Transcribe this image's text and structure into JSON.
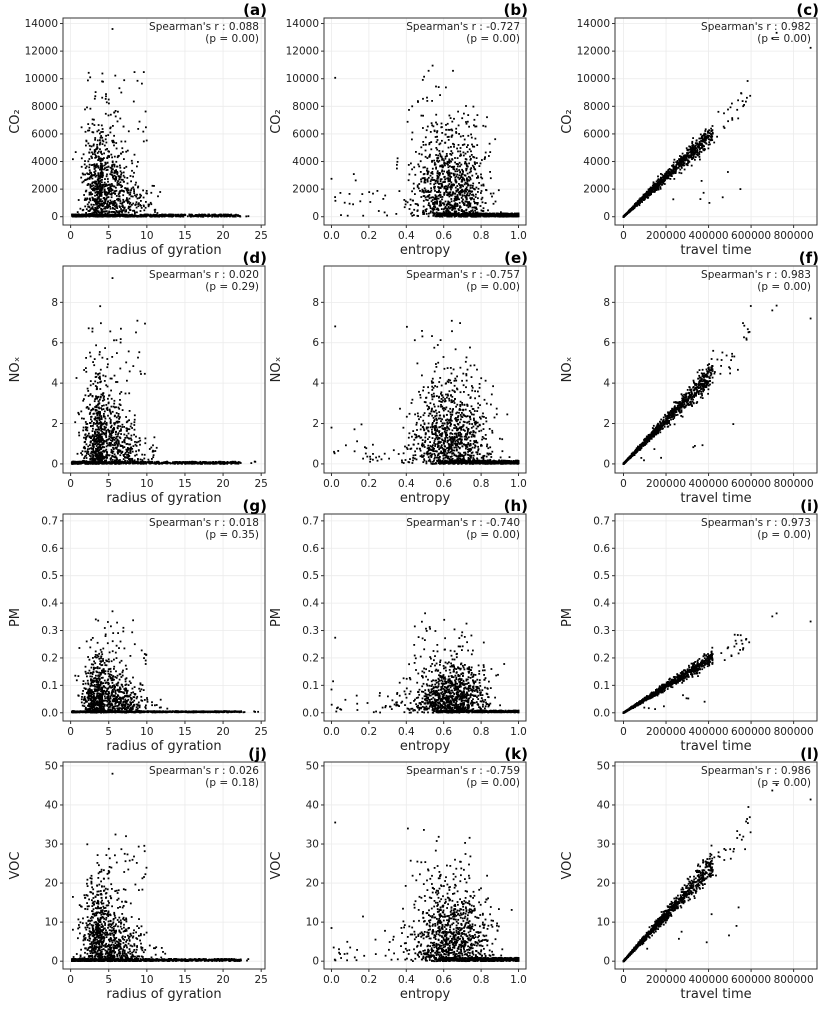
{
  "chart_data": [
    {
      "id": "a",
      "type": "scatter",
      "panel_label": "(a)",
      "xlabel": "radius of gyration",
      "ylabel": "CO₂",
      "xlim": [
        -1,
        25.5
      ],
      "ylim": [
        -600,
        14400
      ],
      "xticks": [
        0,
        5,
        10,
        15,
        20,
        25
      ],
      "yticks": [
        0,
        2000,
        4000,
        6000,
        8000,
        10000,
        12000,
        14000
      ],
      "yticklabels": [
        "0",
        "2000",
        "4000",
        "6000",
        "8000",
        "10000",
        "12000",
        "14000"
      ],
      "stat": "Spearman's r : 0.088",
      "pval": "(p = 0.00)",
      "pattern": "rog",
      "ymax": 13600,
      "base": 0.0028,
      "dense": 5500
    },
    {
      "id": "b",
      "type": "scatter",
      "panel_label": "(b)",
      "xlabel": "entropy",
      "ylabel": "CO₂",
      "xlim": [
        -0.04,
        1.04
      ],
      "ylim": [
        -600,
        14400
      ],
      "xticks": [
        0.0,
        0.2,
        0.4,
        0.6,
        0.8,
        1.0
      ],
      "yticks": [
        0,
        2000,
        4000,
        6000,
        8000,
        10000,
        12000,
        14000
      ],
      "yticklabels": [
        "0",
        "2000",
        "4000",
        "6000",
        "8000",
        "10000",
        "12000",
        "14000"
      ],
      "stat": "Spearman's r : -0.727",
      "pval": "(p = 0.00)",
      "pattern": "entropy",
      "ymax": 13600,
      "base": 0.0028,
      "dense": 5500
    },
    {
      "id": "c",
      "type": "scatter",
      "panel_label": "(c)",
      "xlabel": "travel time",
      "ylabel": "CO₂",
      "xlim": [
        -40000,
        910000
      ],
      "ylim": [
        -600,
        14400
      ],
      "xticks": [
        0,
        200000,
        400000,
        600000,
        800000
      ],
      "yticks": [
        0,
        2000,
        4000,
        6000,
        8000,
        10000,
        12000,
        14000
      ],
      "yticklabels": [
        "0",
        "2000",
        "4000",
        "6000",
        "8000",
        "10000",
        "12000",
        "14000"
      ],
      "stat": "Spearman's r : 0.982",
      "pval": "(p = 0.00)",
      "pattern": "travel",
      "ymax": 13600,
      "slope": 0.0145
    },
    {
      "id": "d",
      "type": "scatter",
      "panel_label": "(d)",
      "xlabel": "radius of gyration",
      "ylabel": "NOₓ",
      "xlim": [
        -1,
        25.5
      ],
      "ylim": [
        -0.45,
        9.8
      ],
      "xticks": [
        0,
        5,
        10,
        15,
        20,
        25
      ],
      "yticks": [
        0,
        2,
        4,
        6,
        8
      ],
      "yticklabels": [
        "0",
        "2",
        "4",
        "6",
        "8"
      ],
      "stat": "Spearman's r : 0.020",
      "pval": "(p = 0.29)",
      "pattern": "rog",
      "ymax": 9.2,
      "base": 0.002,
      "dense": 3.6
    },
    {
      "id": "e",
      "type": "scatter",
      "panel_label": "(e)",
      "xlabel": "entropy",
      "ylabel": "NOₓ",
      "xlim": [
        -0.04,
        1.04
      ],
      "ylim": [
        -0.45,
        9.8
      ],
      "xticks": [
        0.0,
        0.2,
        0.4,
        0.6,
        0.8,
        1.0
      ],
      "yticks": [
        0,
        2,
        4,
        6,
        8
      ],
      "yticklabels": [
        "0",
        "2",
        "4",
        "6",
        "8"
      ],
      "stat": "Spearman's r : -0.757",
      "pval": "(p = 0.00)",
      "pattern": "entropy",
      "ymax": 9.2,
      "base": 0.002,
      "dense": 3.6
    },
    {
      "id": "f",
      "type": "scatter",
      "panel_label": "(f)",
      "xlabel": "travel time",
      "ylabel": "NOₓ",
      "xlim": [
        -40000,
        910000
      ],
      "ylim": [
        -0.45,
        9.8
      ],
      "xticks": [
        0,
        200000,
        400000,
        600000,
        800000
      ],
      "yticks": [
        0,
        2,
        4,
        6,
        8
      ],
      "yticklabels": [
        "0",
        "2",
        "4",
        "6",
        "8"
      ],
      "stat": "Spearman's r : 0.983",
      "pval": "(p = 0.00)",
      "pattern": "travel",
      "ymax": 8.0,
      "slope": 1.08e-05
    },
    {
      "id": "g",
      "type": "scatter",
      "panel_label": "(g)",
      "xlabel": "radius of gyration",
      "ylabel": "PM",
      "xlim": [
        -1,
        25.5
      ],
      "ylim": [
        -0.03,
        0.725
      ],
      "xticks": [
        0,
        5,
        10,
        15,
        20,
        25
      ],
      "yticks": [
        0,
        0.1,
        0.2,
        0.3,
        0.4,
        0.5,
        0.6,
        0.7
      ],
      "yticklabels": [
        "0.0",
        "0.1",
        "0.2",
        "0.3",
        "0.4",
        "0.5",
        "0.6",
        "0.7"
      ],
      "stat": "Spearman's r : 0.018",
      "pval": "(p = 0.35)",
      "pattern": "rog",
      "ymax": 0.37,
      "base": 0.0015,
      "dense": 0.17
    },
    {
      "id": "h",
      "type": "scatter",
      "panel_label": "(h)",
      "xlabel": "entropy",
      "ylabel": "PM",
      "xlim": [
        -0.04,
        1.04
      ],
      "ylim": [
        -0.03,
        0.725
      ],
      "xticks": [
        0.0,
        0.2,
        0.4,
        0.6,
        0.8,
        1.0
      ],
      "yticks": [
        0,
        0.1,
        0.2,
        0.3,
        0.4,
        0.5,
        0.6,
        0.7
      ],
      "yticklabels": [
        "0.0",
        "0.1",
        "0.2",
        "0.3",
        "0.4",
        "0.5",
        "0.6",
        "0.7"
      ],
      "stat": "Spearman's r : -0.740",
      "pval": "(p = 0.00)",
      "pattern": "entropy",
      "ymax": 0.37,
      "base": 0.0015,
      "dense": 0.17
    },
    {
      "id": "i",
      "type": "scatter",
      "panel_label": "(i)",
      "xlabel": "travel time",
      "ylabel": "PM",
      "xlim": [
        -40000,
        910000
      ],
      "ylim": [
        -0.03,
        0.725
      ],
      "xticks": [
        0,
        200000,
        400000,
        600000,
        800000
      ],
      "yticks": [
        0,
        0.1,
        0.2,
        0.3,
        0.4,
        0.5,
        0.6,
        0.7
      ],
      "yticklabels": [
        "0.0",
        "0.1",
        "0.2",
        "0.3",
        "0.4",
        "0.5",
        "0.6",
        "0.7"
      ],
      "stat": "Spearman's r : 0.973",
      "pval": "(p = 0.00)",
      "pattern": "travel",
      "ymax": 0.37,
      "slope": 4.8e-07
    },
    {
      "id": "j",
      "type": "scatter",
      "panel_label": "(j)",
      "xlabel": "radius of gyration",
      "ylabel": "VOC",
      "xlim": [
        -1,
        25.5
      ],
      "ylim": [
        -2,
        51
      ],
      "xticks": [
        0,
        5,
        10,
        15,
        20,
        25
      ],
      "yticks": [
        0,
        10,
        20,
        30,
        40,
        50
      ],
      "yticklabels": [
        "0",
        "10",
        "20",
        "30",
        "40",
        "50"
      ],
      "stat": "Spearman's r : 0.026",
      "pval": "(p = 0.18)",
      "pattern": "rog",
      "ymax": 48,
      "base": 0.01,
      "dense": 17
    },
    {
      "id": "k",
      "type": "scatter",
      "panel_label": "(k)",
      "xlabel": "entropy",
      "ylabel": "VOC",
      "xlim": [
        -0.04,
        1.04
      ],
      "ylim": [
        -2,
        51
      ],
      "xticks": [
        0.0,
        0.2,
        0.4,
        0.6,
        0.8,
        1.0
      ],
      "yticks": [
        0,
        10,
        20,
        30,
        40,
        50
      ],
      "yticklabels": [
        "0",
        "10",
        "20",
        "30",
        "40",
        "50"
      ],
      "stat": "Spearman's r : -0.759",
      "pval": "(p = 0.00)",
      "pattern": "entropy",
      "ymax": 48,
      "base": 0.01,
      "dense": 17
    },
    {
      "id": "l",
      "type": "scatter",
      "panel_label": "(l)",
      "xlabel": "travel time",
      "ylabel": "VOC",
      "xlim": [
        -40000,
        910000
      ],
      "ylim": [
        -2,
        51
      ],
      "xticks": [
        0,
        200000,
        400000,
        600000,
        800000
      ],
      "yticks": [
        0,
        10,
        20,
        30,
        40,
        50
      ],
      "yticklabels": [
        "0",
        "10",
        "20",
        "30",
        "40",
        "50"
      ],
      "stat": "Spearman's r : 0.986",
      "pval": "(p = 0.00)",
      "pattern": "travel",
      "ymax": 46,
      "slope": 5.95e-05
    }
  ]
}
